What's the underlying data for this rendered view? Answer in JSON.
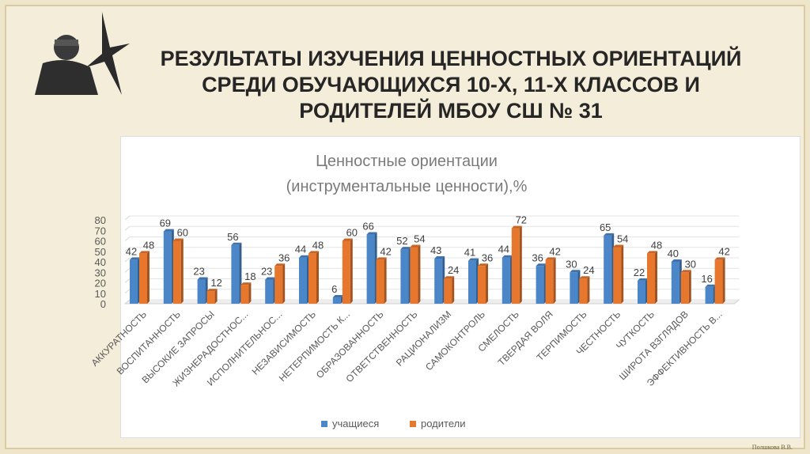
{
  "slide": {
    "title_lines": [
      "РЕЗУЛЬТАТЫ ИЗУЧЕНИЯ ЦЕННОСТНЫХ ОРИЕНТАЦИЙ",
      "СРЕДИ ОБУЧАЮЩИХСЯ 10-Х, 11-Х КЛАССОВ И",
      "РОДИТЕЛЕЙ МБОУ СШ № 31"
    ],
    "credit": "Полшкова В.В."
  },
  "chart_data": {
    "type": "bar",
    "title": "Ценностные ориентации",
    "subtitle": "(инструментальные ценности),%",
    "categories": [
      "АККУРАТНОСТЬ",
      "ВОСПИТАННОСТЬ",
      "ВЫСОКИЕ ЗАПРОСЫ",
      "ЖИЗНЕРАДОСТНОС...",
      "ИСПОЛНИТЕЛЬНОС...",
      "НЕЗАВИСИМОСТЬ",
      "НЕТЕРПИМОСТЬ К...",
      "ОБРАЗОВАННОСТЬ",
      "ОТВЕТСТВЕННОСТЬ",
      "РАЦИОНАЛИЗМ",
      "САМОКОНТРОЛЬ",
      "СМЕЛОСТЬ",
      "ТВЕРДАЯ ВОЛЯ",
      "ТЕРПИМОСТЬ",
      "ЧЕСТНОСТЬ",
      "ЧУТКОСТЬ",
      "ШИРОТА ВЗГЛЯДОВ",
      "ЭФФЕКТИВНОСТЬ В..."
    ],
    "series": [
      {
        "name": "учащиеся",
        "color": "#4a86c8",
        "values": [
          42,
          69,
          23,
          56,
          23,
          44,
          6,
          66,
          52,
          43,
          41,
          44,
          36,
          30,
          65,
          22,
          40,
          16
        ]
      },
      {
        "name": "родители",
        "color": "#e8772e",
        "values": [
          48,
          60,
          12,
          18,
          36,
          48,
          60,
          42,
          54,
          24,
          36,
          72,
          42,
          24,
          54,
          48,
          30,
          42
        ]
      }
    ],
    "yticks": [
      0,
      10,
      20,
      30,
      40,
      50,
      60,
      70,
      80
    ],
    "ylim": [
      0,
      80
    ],
    "legend": "bottom"
  }
}
